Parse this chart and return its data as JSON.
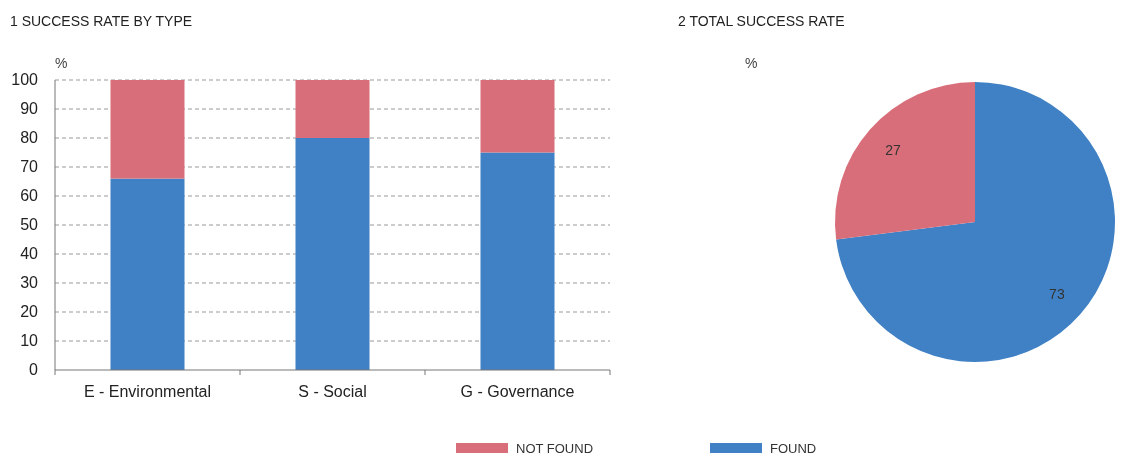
{
  "chart_data": [
    {
      "type": "bar",
      "title": "1  SUCCESS RATE BY TYPE",
      "ylabel": "%",
      "categories": [
        "E - Environmental",
        "S - Social",
        "G - Governance"
      ],
      "stacked": true,
      "series": [
        {
          "name": "FOUND",
          "color": "#4080c4",
          "values": [
            66,
            80,
            75
          ]
        },
        {
          "name": "NOT FOUND",
          "color": "#d86e7a",
          "values": [
            34,
            20,
            25
          ]
        }
      ],
      "ylim": [
        0,
        100
      ],
      "yticks": [
        0,
        10,
        20,
        30,
        40,
        50,
        60,
        70,
        80,
        90,
        100
      ],
      "grid": "y",
      "legend": "bottom"
    },
    {
      "type": "pie",
      "title": "2  TOTAL SUCCESS RATE",
      "ylabel": "%",
      "categories": [
        null,
        null
      ],
      "values": [
        73,
        27
      ],
      "colors": [
        "#4080c4",
        "#d86e7a"
      ],
      "data_labels": true
    }
  ]
}
